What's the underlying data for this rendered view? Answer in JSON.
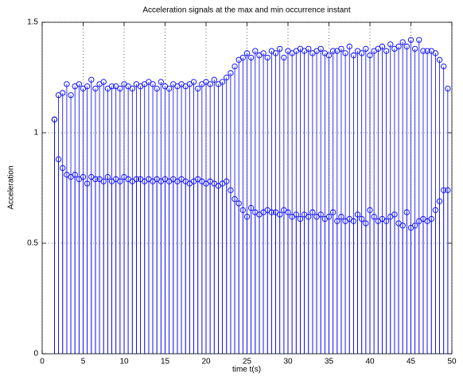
{
  "chart_data": {
    "type": "stem",
    "title": "Acceleration signals at the max and min occurrence instant",
    "xlabel": "time t(s)",
    "ylabel": "Acceleration",
    "xlim": [
      0,
      50
    ],
    "ylim": [
      0,
      1.5
    ],
    "xticks": [
      0,
      5,
      10,
      15,
      20,
      25,
      30,
      35,
      40,
      45,
      50
    ],
    "yticks": [
      0,
      0.5,
      1,
      1.5
    ],
    "grid": true,
    "x": [
      1.5,
      2,
      2.5,
      3,
      3.5,
      4,
      4.5,
      5,
      5.5,
      6,
      6.5,
      7,
      7.5,
      8,
      8.5,
      9,
      9.5,
      10,
      10.5,
      11,
      11.5,
      12,
      12.5,
      13,
      13.5,
      14,
      14.5,
      15,
      15.5,
      16,
      16.5,
      17,
      17.5,
      18,
      18.5,
      19,
      19.5,
      20,
      20.5,
      21,
      21.5,
      22,
      22.5,
      23,
      23.5,
      24,
      24.5,
      25,
      25.5,
      26,
      26.5,
      27,
      27.5,
      28,
      28.5,
      29,
      29.5,
      30,
      30.5,
      31,
      31.5,
      32,
      32.5,
      33,
      33.5,
      34,
      34.5,
      35,
      35.5,
      36,
      36.5,
      37,
      37.5,
      38,
      38.5,
      39,
      39.5,
      40,
      40.5,
      41,
      41.5,
      42,
      42.5,
      43,
      43.5,
      44,
      44.5,
      45,
      45.5,
      46,
      46.5,
      47,
      47.5,
      48,
      48.5,
      49,
      49.5
    ],
    "series": [
      {
        "color": "#0000ff",
        "values": [
          1.06,
          1.17,
          1.18,
          1.22,
          1.17,
          1.21,
          1.22,
          1.2,
          1.21,
          1.24,
          1.2,
          1.22,
          1.23,
          1.2,
          1.21,
          1.21,
          1.2,
          1.22,
          1.21,
          1.2,
          1.22,
          1.21,
          1.22,
          1.23,
          1.22,
          1.2,
          1.23,
          1.21,
          1.2,
          1.22,
          1.21,
          1.22,
          1.21,
          1.22,
          1.23,
          1.2,
          1.22,
          1.23,
          1.22,
          1.24,
          1.22,
          1.23,
          1.25,
          1.27,
          1.3,
          1.33,
          1.34,
          1.36,
          1.34,
          1.37,
          1.35,
          1.36,
          1.34,
          1.37,
          1.36,
          1.38,
          1.34,
          1.37,
          1.36,
          1.37,
          1.38,
          1.37,
          1.38,
          1.36,
          1.37,
          1.38,
          1.36,
          1.35,
          1.37,
          1.37,
          1.38,
          1.36,
          1.39,
          1.35,
          1.37,
          1.36,
          1.38,
          1.35,
          1.37,
          1.38,
          1.39,
          1.37,
          1.4,
          1.38,
          1.39,
          1.41,
          1.39,
          1.42,
          1.38,
          1.42,
          1.37,
          1.37,
          1.37,
          1.36,
          1.33,
          1.3,
          1.2
        ]
      },
      {
        "color": "#0000ff",
        "values": [
          1.06,
          0.88,
          0.84,
          0.81,
          0.8,
          0.81,
          0.79,
          0.8,
          0.77,
          0.8,
          0.79,
          0.79,
          0.78,
          0.8,
          0.78,
          0.79,
          0.78,
          0.8,
          0.79,
          0.78,
          0.79,
          0.79,
          0.78,
          0.79,
          0.78,
          0.79,
          0.78,
          0.79,
          0.78,
          0.79,
          0.78,
          0.79,
          0.78,
          0.77,
          0.78,
          0.79,
          0.78,
          0.77,
          0.78,
          0.77,
          0.76,
          0.77,
          0.78,
          0.74,
          0.7,
          0.68,
          0.65,
          0.62,
          0.66,
          0.64,
          0.63,
          0.64,
          0.65,
          0.64,
          0.64,
          0.63,
          0.65,
          0.64,
          0.62,
          0.63,
          0.61,
          0.63,
          0.62,
          0.64,
          0.62,
          0.63,
          0.61,
          0.62,
          0.64,
          0.6,
          0.62,
          0.6,
          0.61,
          0.6,
          0.63,
          0.61,
          0.59,
          0.65,
          0.62,
          0.6,
          0.61,
          0.6,
          0.62,
          0.63,
          0.59,
          0.58,
          0.64,
          0.57,
          0.58,
          0.6,
          0.61,
          0.6,
          0.61,
          0.65,
          0.69,
          0.74,
          0.74
        ]
      }
    ]
  }
}
